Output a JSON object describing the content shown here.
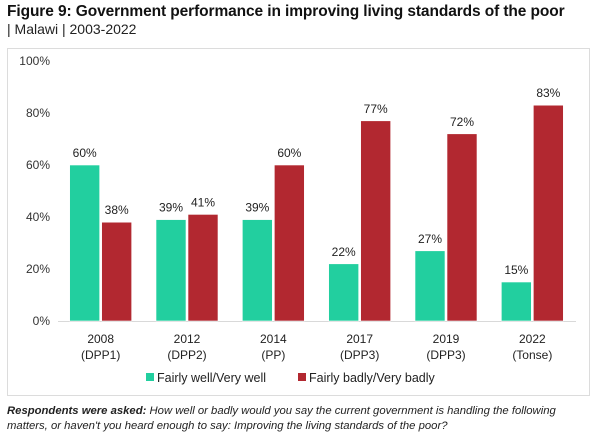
{
  "header": {
    "title": "Figure 9: Government performance in improving living standards of the poor",
    "subtitle": "| Malawi | 2003-2022"
  },
  "footnote": {
    "lead": "Respondents were asked:",
    "text": " How well or badly would you say the current government is handling the following matters, or haven't you heard enough to say: Improving the living standards of the poor?"
  },
  "chart_data": {
    "type": "bar",
    "title": "Government performance in improving living standards of the poor",
    "xlabel": "",
    "ylabel": "",
    "ylim": [
      0,
      100
    ],
    "yticks": [
      0,
      20,
      40,
      60,
      80,
      100
    ],
    "ytick_labels": [
      "0%",
      "20%",
      "40%",
      "60%",
      "80%",
      "100%"
    ],
    "grid": false,
    "legend": "bottom",
    "categories": [
      [
        "2008",
        "(DPP1)"
      ],
      [
        "2012",
        "(DPP2)"
      ],
      [
        "2014",
        "(PP)"
      ],
      [
        "2017",
        "(DPP3)"
      ],
      [
        "2019",
        "(DPP3)"
      ],
      [
        "2022",
        "(Tonse)"
      ]
    ],
    "series": [
      {
        "name": "Fairly well/Very well",
        "color": "#22CF9F",
        "values": [
          60,
          39,
          39,
          22,
          27,
          15
        ]
      },
      {
        "name": "Fairly badly/Very badly",
        "color": "#B22830",
        "values": [
          38,
          41,
          60,
          77,
          72,
          83
        ]
      }
    ],
    "value_suffix": "%"
  }
}
